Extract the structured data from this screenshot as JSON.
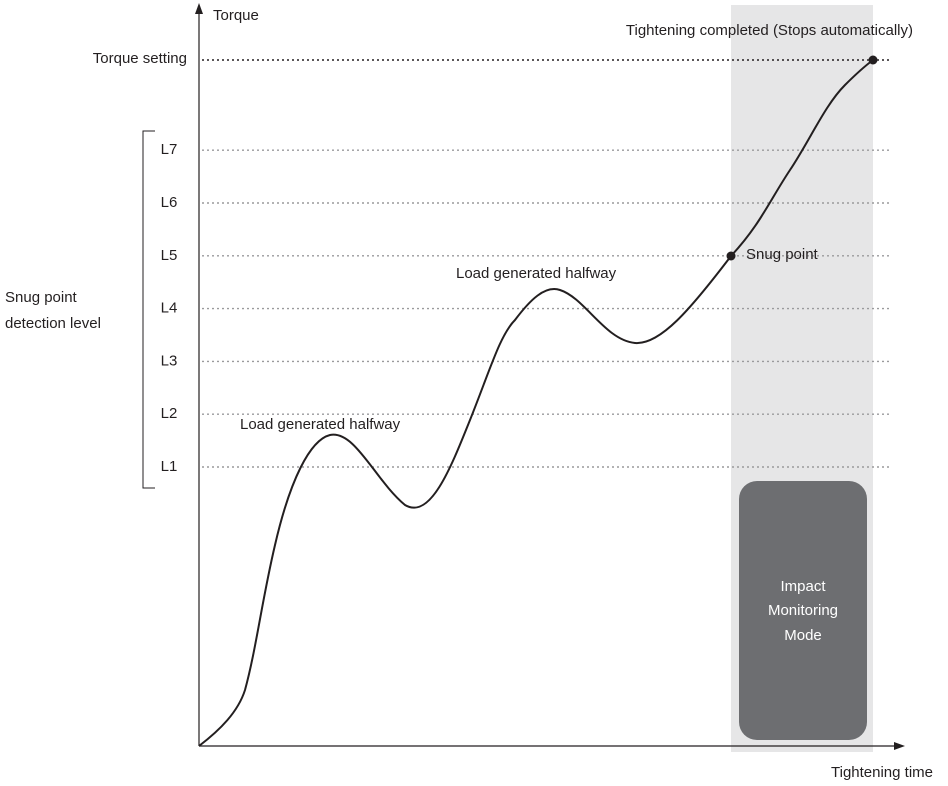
{
  "axes": {
    "y_label": "Torque",
    "x_label": "Tightening time"
  },
  "torque_setting": "Torque setting",
  "levels": [
    "L1",
    "L2",
    "L3",
    "L4",
    "L5",
    "L6",
    "L7"
  ],
  "level_group_label": [
    "Snug point",
    "detection level"
  ],
  "annotations": {
    "completed": "Tightening completed (Stops automatically)",
    "snug_point": "Snug point",
    "load_1": "Load generated halfway",
    "load_2": "Load generated halfway"
  },
  "mode_box": [
    "Impact",
    "Monitoring",
    "Mode"
  ]
}
